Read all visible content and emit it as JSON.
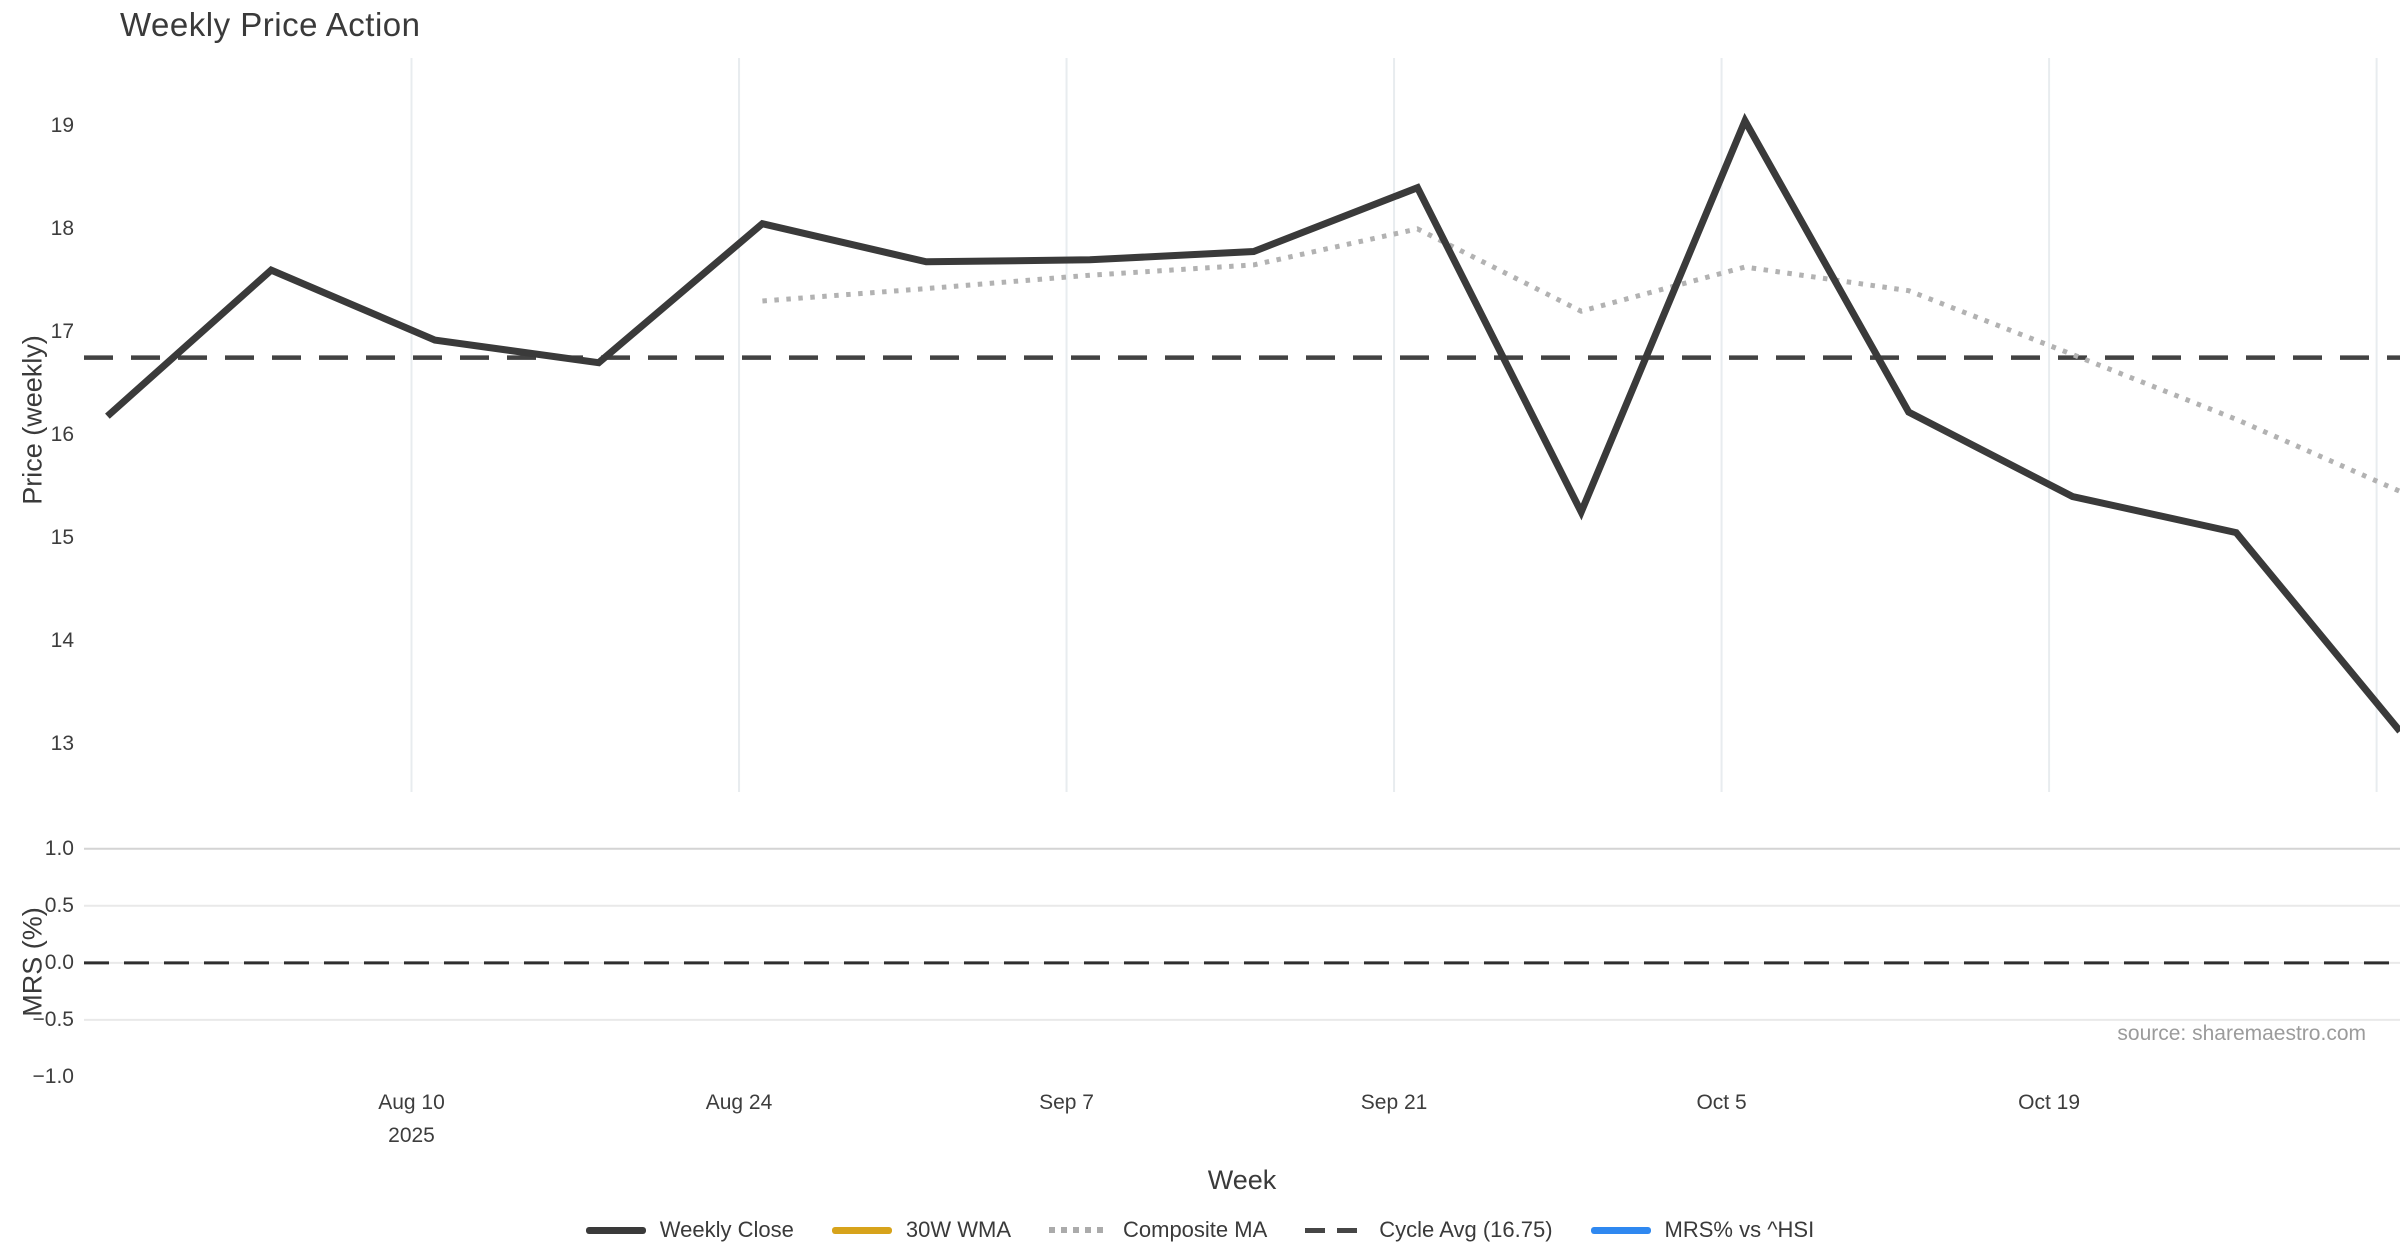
{
  "title": "Weekly Price Action",
  "source_annotation": "source: sharemaestro.com",
  "colors": {
    "background": "#ffffff",
    "text": "#3a3a3a",
    "tick_text": "#3d3d3d",
    "source_text": "#9b9b9b",
    "weekly_close": "#3a3a3a",
    "wma_30w": "#d7a31b",
    "composite_ma": "#b2b2b2",
    "cycle_avg": "#424242",
    "mrs_line": "#2f88f0",
    "grid_vertical": "#e8ecef",
    "grid_mrs_light": "#e9e9e9",
    "grid_mrs_top": "#d4d4d4"
  },
  "axes": {
    "price": {
      "title": "Price (weekly)",
      "ticks": [
        "19",
        "18",
        "17",
        "16",
        "15",
        "14",
        "13"
      ],
      "tick_values": [
        19,
        18,
        17,
        16,
        15,
        14,
        13
      ]
    },
    "mrs": {
      "title": "MRS (%)",
      "ticks": [
        "1.0",
        "0.5",
        "0.0",
        "−0.5",
        "−1.0"
      ],
      "tick_values": [
        1.0,
        0.5,
        0.0,
        -0.5,
        -1.0
      ]
    },
    "x": {
      "title": "Week",
      "year_label": "2025",
      "ticks": [
        {
          "label": "Aug 10",
          "day": 14,
          "show_year": true
        },
        {
          "label": "Aug 24",
          "day": 28,
          "show_year": false
        },
        {
          "label": "Sep 7",
          "day": 42,
          "show_year": false
        },
        {
          "label": "Sep 21",
          "day": 56,
          "show_year": false
        },
        {
          "label": "Oct 5",
          "day": 70,
          "show_year": false
        },
        {
          "label": "Oct 19",
          "day": 84,
          "show_year": false
        },
        {
          "label": "",
          "day": 98,
          "show_year": false
        }
      ]
    }
  },
  "chart_data": [
    {
      "type": "line",
      "subplot": "price",
      "title": "Weekly Price Action",
      "ylabel": "Price (weekly)",
      "xlabel": "Week",
      "ylim": [
        12.53,
        19.66
      ],
      "grid": "vertical-only",
      "x_dates": [
        "2025-07-28",
        "2025-08-04",
        "2025-08-11",
        "2025-08-18",
        "2025-08-25",
        "2025-09-01",
        "2025-09-08",
        "2025-09-15",
        "2025-09-22",
        "2025-09-29",
        "2025-10-06",
        "2025-10-13",
        "2025-10-20",
        "2025-10-27",
        "2025-11-03"
      ],
      "x_day_offsets": [
        1,
        8,
        15,
        22,
        29,
        36,
        43,
        50,
        57,
        64,
        71,
        78,
        85,
        92,
        99
      ],
      "series": [
        {
          "name": "Weekly Close",
          "style": "solid",
          "width": 7,
          "values": [
            16.18,
            17.6,
            16.92,
            16.7,
            18.05,
            17.68,
            17.7,
            17.78,
            18.4,
            15.25,
            19.05,
            16.22,
            15.4,
            15.05,
            13.12
          ]
        },
        {
          "name": "30W WMA",
          "style": "solid",
          "width": 7,
          "values": []
        },
        {
          "name": "Composite MA",
          "style": "dotted",
          "width": 5,
          "values": [
            null,
            null,
            null,
            null,
            17.3,
            17.42,
            17.55,
            17.65,
            18.0,
            17.2,
            17.63,
            17.4,
            16.78,
            16.15,
            15.45
          ]
        },
        {
          "name": "Cycle Avg (16.75)",
          "style": "dashed",
          "width": 4.5,
          "constant": 16.75
        }
      ]
    },
    {
      "type": "line",
      "subplot": "mrs",
      "ylabel": "MRS (%)",
      "ylim": [
        -1.07,
        1.12
      ],
      "grid": "horizontal-only",
      "gridline_values": [
        1.0,
        0.5,
        0.0,
        -0.5
      ],
      "series": [
        {
          "name": "MRS% vs ^HSI",
          "style": "solid",
          "width": 7,
          "values": []
        },
        {
          "name": "Zero Line",
          "style": "dashed",
          "width": 3,
          "constant": 0
        }
      ]
    }
  ],
  "legend": {
    "items": [
      {
        "label": "Weekly Close",
        "swatch": "solid",
        "color": "#3a3a3a"
      },
      {
        "label": "30W WMA",
        "swatch": "solid",
        "color": "#d7a31b"
      },
      {
        "label": "Composite MA",
        "swatch": "dotted",
        "color": "#ababab"
      },
      {
        "label": "Cycle Avg (16.75)",
        "swatch": "dashed",
        "color": "#464646"
      },
      {
        "label": "MRS% vs ^HSI",
        "swatch": "solid",
        "color": "#2f88f0"
      }
    ]
  }
}
